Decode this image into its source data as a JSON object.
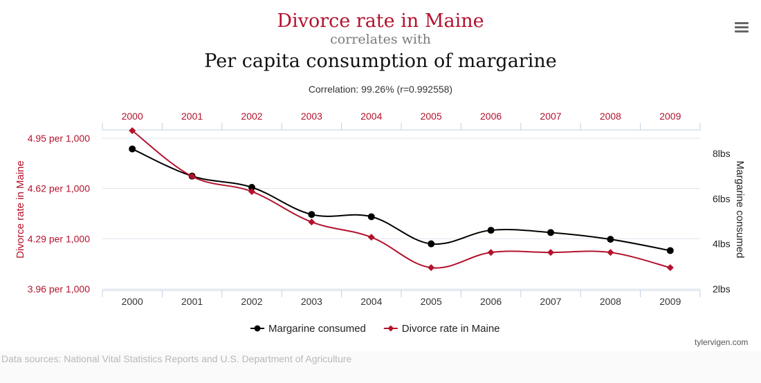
{
  "header": {
    "title": "Divorce rate in Maine",
    "connector": "correlates with",
    "subtitle": "Per capita consumption of margarine",
    "correlation": "Correlation: 99.26% (r=0.992558)"
  },
  "menu": {
    "icon": "hamburger-menu-icon"
  },
  "watermark": "tylervigen.com",
  "footer": {
    "sources": "Data sources: National Vital Statistics Reports and U.S. Department of Agriculture"
  },
  "colors": {
    "divorce": "#b3122c",
    "margarine": "#000000",
    "grid": "#dde3ec",
    "axis": "#c0d0e0"
  },
  "chart_data": {
    "type": "line",
    "x": [
      "2000",
      "2001",
      "2002",
      "2003",
      "2004",
      "2005",
      "2006",
      "2007",
      "2008",
      "2009"
    ],
    "series": [
      {
        "name": "Margarine consumed",
        "axis": "right",
        "color": "#000000",
        "marker": "circle",
        "values": [
          8.2,
          7.0,
          6.5,
          5.3,
          5.2,
          4.0,
          4.6,
          4.5,
          4.2,
          3.7
        ]
      },
      {
        "name": "Divorce rate in Maine",
        "axis": "left",
        "color": "#b3122c",
        "marker": "diamond",
        "values": [
          5.0,
          4.7,
          4.6,
          4.4,
          4.3,
          4.1,
          4.2,
          4.2,
          4.2,
          4.1
        ]
      }
    ],
    "left_axis": {
      "title": "Divorce rate in Maine",
      "ticks": [
        "4.95 per 1,000",
        "4.62 per 1,000",
        "4.29 per 1,000",
        "3.96 per 1,000"
      ],
      "tick_values": [
        4.95,
        4.62,
        4.29,
        3.96
      ],
      "ylim": [
        3.96,
        4.95
      ]
    },
    "right_axis": {
      "title": "Margarine consumed",
      "ticks": [
        "8lbs",
        "6lbs",
        "4lbs",
        "2lbs"
      ],
      "tick_values": [
        8,
        6,
        4,
        2
      ],
      "ylim": [
        2,
        8
      ]
    },
    "grid": true,
    "legend_position": "bottom-center"
  }
}
